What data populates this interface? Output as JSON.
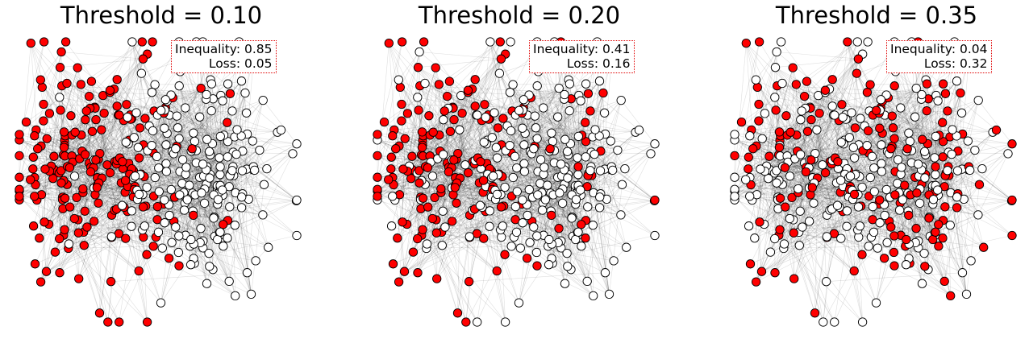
{
  "figure": {
    "colors": {
      "highlight": "#ff0000",
      "plain": "#ffffff",
      "outline": "#000000",
      "edge": "#000000",
      "box_border": "#e00000"
    },
    "panels": [
      {
        "title": "Threshold = 0.10",
        "inequality_text": "Inequality: 0.85",
        "loss_text": "Loss: 0.05",
        "red_fraction": 0.5
      },
      {
        "title": "Threshold = 0.20",
        "inequality_text": "Inequality: 0.41",
        "loss_text": "Loss: 0.16",
        "red_fraction": 0.42
      },
      {
        "title": "Threshold = 0.35",
        "inequality_text": "Inequality: 0.04",
        "loss_text": "Loss: 0.32",
        "red_fraction": 0.38
      }
    ]
  }
}
